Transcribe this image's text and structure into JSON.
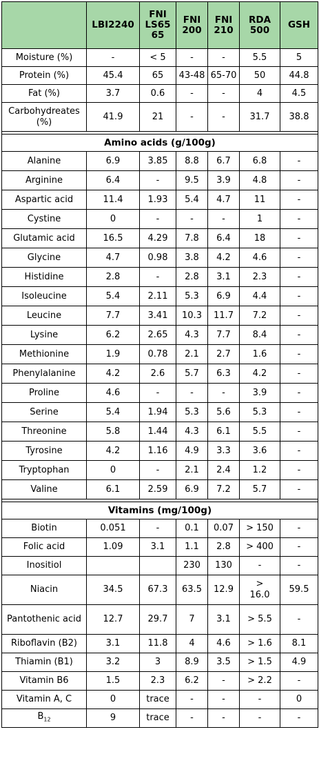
{
  "columns": [
    "",
    "LBI2240",
    "FNI\nLS65\n65",
    "FNI\n200",
    "FNI\n210",
    "RDA\n500",
    "GSH"
  ],
  "general_rows": [
    {
      "label": "Moisture (%)",
      "values": [
        "-",
        "< 5",
        "-",
        "-",
        "5.5",
        "5"
      ]
    },
    {
      "label": "Protein (%)",
      "values": [
        "45.4",
        "65",
        "43-48",
        "65-70",
        "50",
        "44.8"
      ]
    },
    {
      "label": "Fat (%)",
      "values": [
        "3.7",
        "0.6",
        "-",
        "-",
        "4",
        "4.5"
      ]
    },
    {
      "label": "Carbohydreates (%)",
      "values": [
        "41.9",
        "21",
        "-",
        "-",
        "31.7",
        "38.8"
      ]
    }
  ],
  "amino_title": "Amino acids (g/100g)",
  "amino_rows": [
    {
      "label": "Alanine",
      "values": [
        "6.9",
        "3.85",
        "8.8",
        "6.7",
        "6.8",
        "-"
      ]
    },
    {
      "label": "Arginine",
      "values": [
        "6.4",
        "-",
        "9.5",
        "3.9",
        "4.8",
        "-"
      ]
    },
    {
      "label": "Aspartic acid",
      "values": [
        "11.4",
        "1.93",
        "5.4",
        "4.7",
        "11",
        "-"
      ]
    },
    {
      "label": "Cystine",
      "values": [
        "0",
        "-",
        "-",
        "-",
        "1",
        "-"
      ]
    },
    {
      "label": "Glutamic acid",
      "values": [
        "16.5",
        "4.29",
        "7.8",
        "6.4",
        "18",
        "-"
      ]
    },
    {
      "label": "Glycine",
      "values": [
        "4.7",
        "0.98",
        "3.8",
        "4.2",
        "4.6",
        "-"
      ]
    },
    {
      "label": "Histidine",
      "values": [
        "2.8",
        "-",
        "2.8",
        "3.1",
        "2.3",
        "-"
      ]
    },
    {
      "label": "Isoleucine",
      "values": [
        "5.4",
        "2.11",
        "5.3",
        "6.9",
        "4.4",
        "-"
      ]
    },
    {
      "label": "Leucine",
      "values": [
        "7.7",
        "3.41",
        "10.3",
        "11.7",
        "7.2",
        "-"
      ]
    },
    {
      "label": "Lysine",
      "values": [
        "6.2",
        "2.65",
        "4.3",
        "7.7",
        "8.4",
        "-"
      ]
    },
    {
      "label": "Methionine",
      "values": [
        "1.9",
        "0.78",
        "2.1",
        "2.7",
        "1.6",
        "-"
      ]
    },
    {
      "label": "Phenylalanine",
      "values": [
        "4.2",
        "2.6",
        "5.7",
        "6.3",
        "4.2",
        "-"
      ]
    },
    {
      "label": "Proline",
      "values": [
        "4.6",
        "-",
        "-",
        "-",
        "3.9",
        "-"
      ]
    },
    {
      "label": "Serine",
      "values": [
        "5.4",
        "1.94",
        "5.3",
        "5.6",
        "5.3",
        "-"
      ]
    },
    {
      "label": "Threonine",
      "values": [
        "5.8",
        "1.44",
        "4.3",
        "6.1",
        "5.5",
        "-"
      ]
    },
    {
      "label": "Tyrosine",
      "values": [
        "4.2",
        "1.16",
        "4.9",
        "3.3",
        "3.6",
        "-"
      ]
    },
    {
      "label": "Tryptophan",
      "values": [
        "0",
        "-",
        "2.1",
        "2.4",
        "1.2",
        "-"
      ]
    },
    {
      "label": "Valine",
      "values": [
        "6.1",
        "2.59",
        "6.9",
        "7.2",
        "5.7",
        "-"
      ]
    }
  ],
  "vitamin_title": "Vitamins (mg/100g)",
  "vitamin_rows": [
    {
      "label": "Biotin",
      "values": [
        "0.051",
        "-",
        "0.1",
        "0.07",
        "> 150",
        "-"
      ]
    },
    {
      "label": "Folic acid",
      "values": [
        "1.09",
        "3.1",
        "1.1",
        "2.8",
        "> 400",
        "-"
      ]
    },
    {
      "label": "Inositiol",
      "values": [
        "",
        "",
        "230",
        "130",
        "-",
        "-"
      ]
    },
    {
      "label": "Niacin",
      "values": [
        "34.5",
        "67.3",
        "63.5",
        "12.9",
        ">\n16.0",
        "59.5"
      ]
    },
    {
      "label": "Pantothenic acid",
      "values": [
        "12.7",
        "29.7",
        "7",
        "3.1",
        "> 5.5",
        "-"
      ]
    },
    {
      "label": "Riboflavin (B2)",
      "values": [
        "3.1",
        "11.8",
        "4",
        "4.6",
        "> 1.6",
        "8.1"
      ]
    },
    {
      "label": "Thiamin (B1)",
      "values": [
        "3.2",
        "3",
        "8.9",
        "3.5",
        "> 1.5",
        "4.9"
      ]
    },
    {
      "label": "Vitamin B6",
      "values": [
        "1.5",
        "2.3",
        "6.2",
        "-",
        "> 2.2",
        "-"
      ]
    },
    {
      "label": "Vitamin A, C",
      "values": [
        "0",
        "trace",
        "-",
        "-",
        "-",
        "0"
      ]
    },
    {
      "label": "B12",
      "label_base": "B",
      "label_sub": "12",
      "values": [
        "9",
        "trace",
        "-",
        "-",
        "-",
        "-"
      ]
    }
  ],
  "colors": {
    "header_bg": "#a7d7a8",
    "border": "#000000"
  }
}
